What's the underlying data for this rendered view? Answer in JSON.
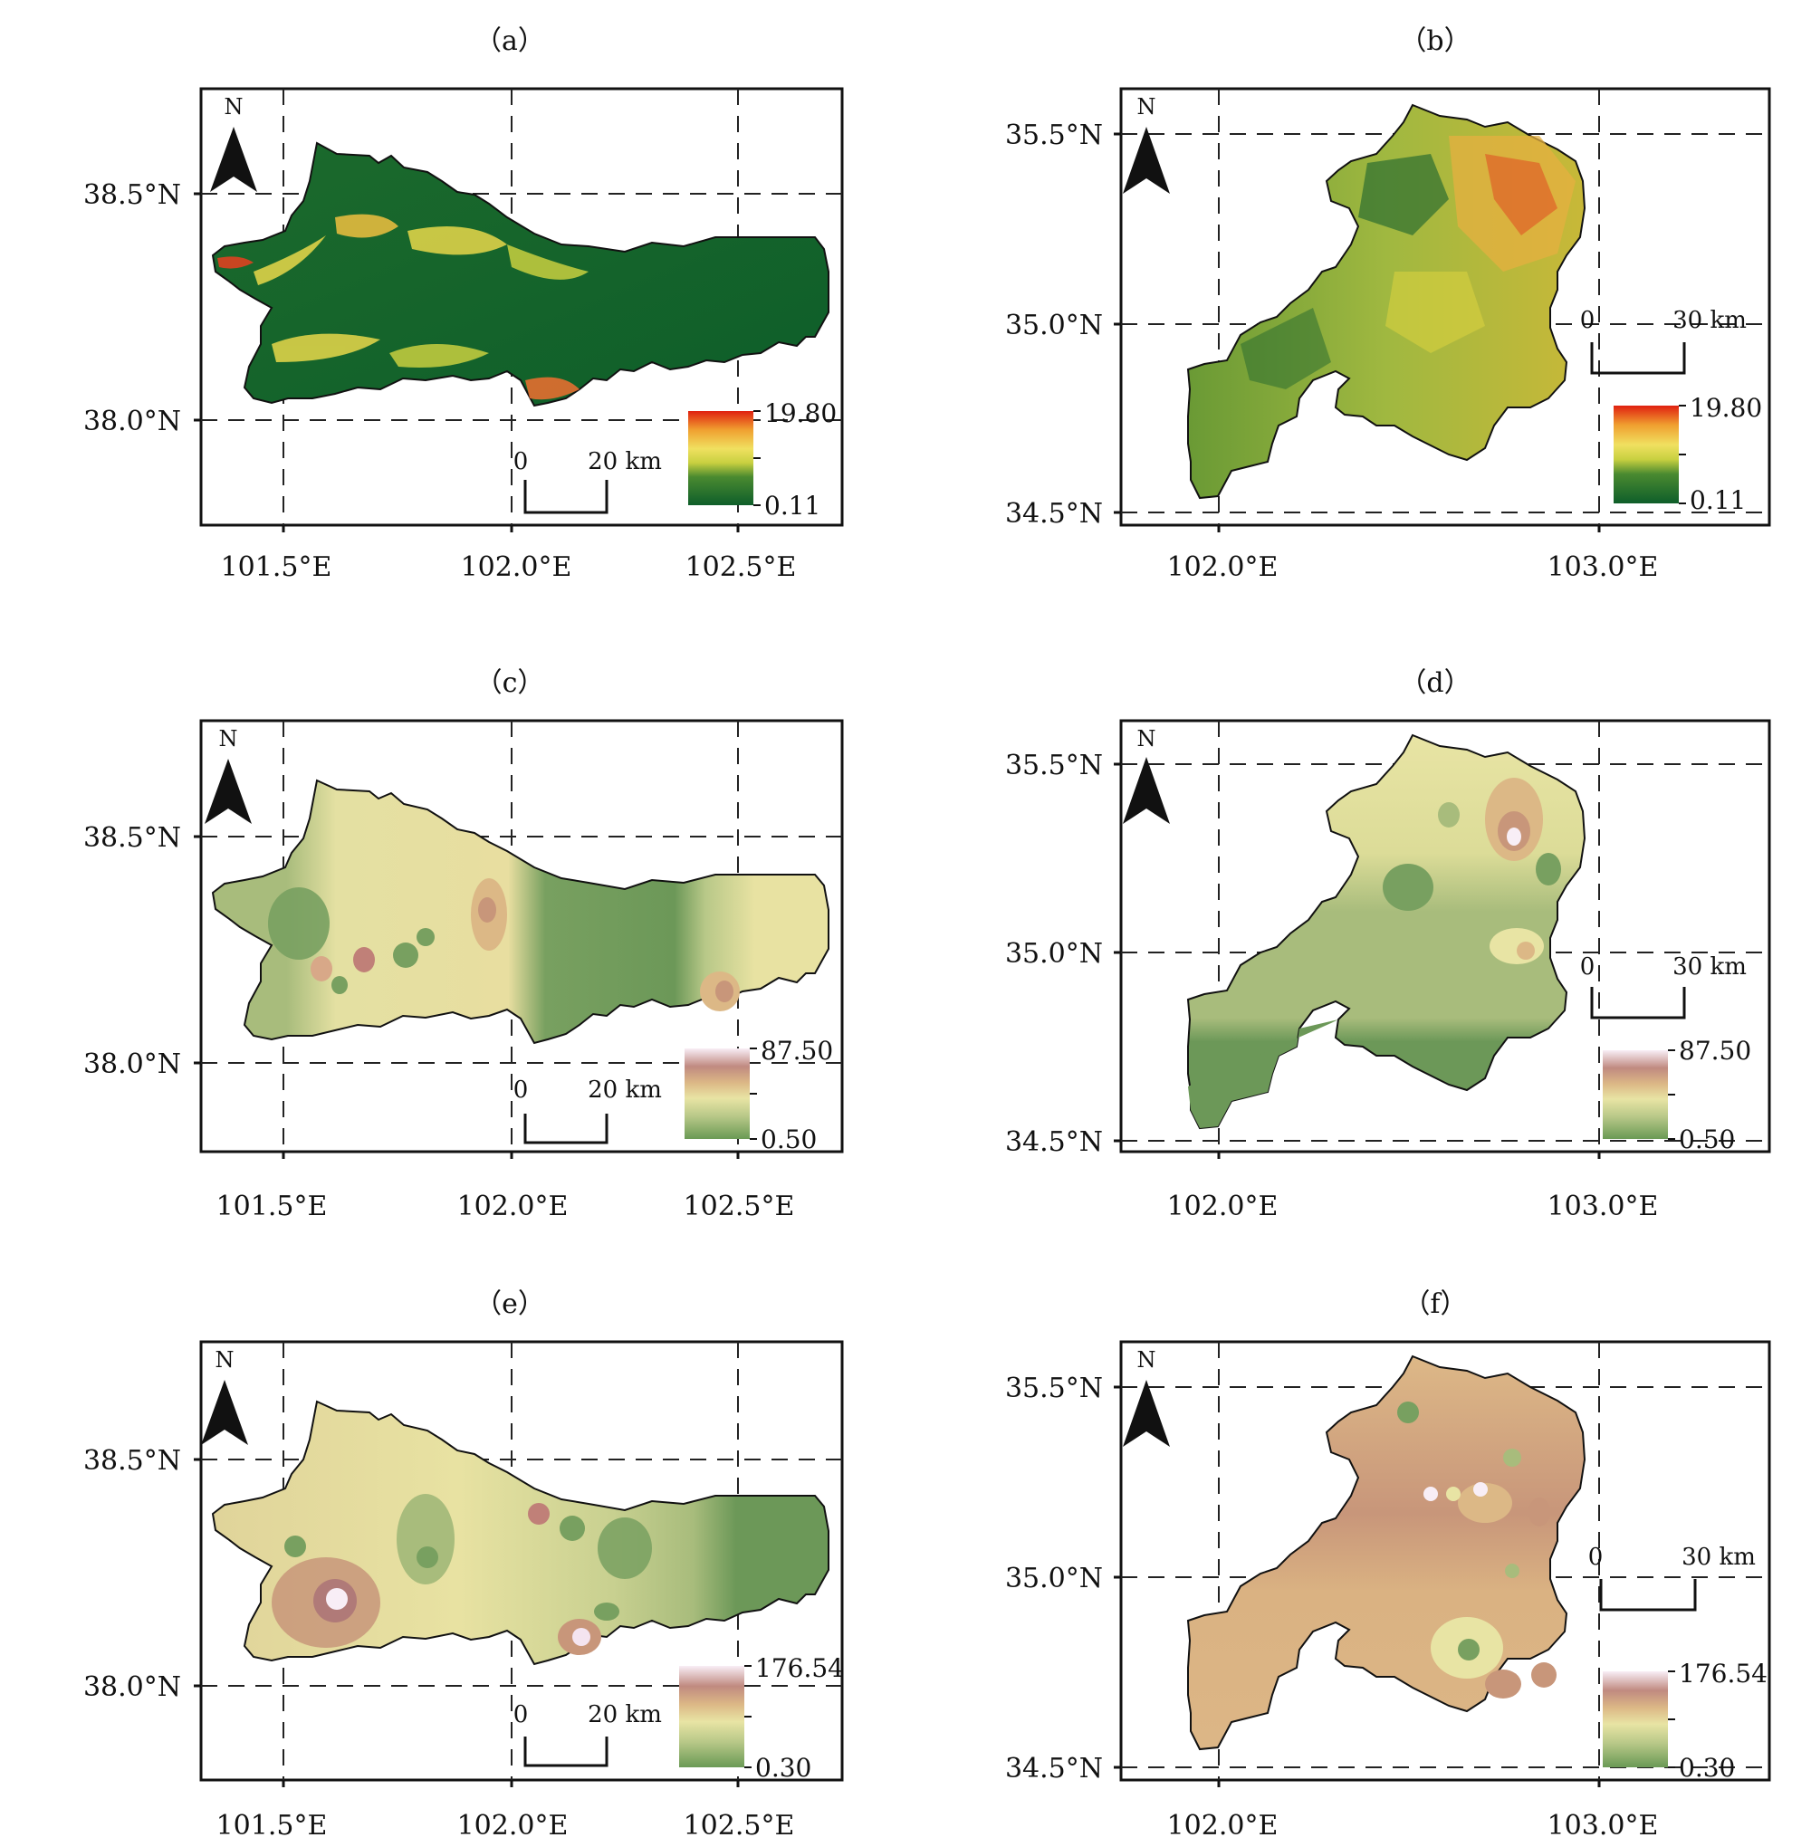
{
  "panels": [
    {
      "id": "a",
      "title": "（a）",
      "region": "west",
      "lat_ticks": [
        "38.5°N",
        "38.0°N"
      ],
      "lon_ticks": [
        "101.5°E",
        "102.0°E",
        "102.5°E"
      ],
      "scale": {
        "zero": "0",
        "dist": "20 km"
      },
      "legend": {
        "max": "19.80",
        "min": "0.11",
        "palette": "slope"
      },
      "north": "N"
    },
    {
      "id": "b",
      "title": "（b）",
      "region": "east",
      "lat_ticks": [
        "35.5°N",
        "35.0°N",
        "34.5°N"
      ],
      "lon_ticks": [
        "102.0°E",
        "103.0°E"
      ],
      "scale": {
        "zero": "0",
        "dist": "30 km"
      },
      "legend": {
        "max": "19.80",
        "min": "0.11",
        "palette": "slope"
      },
      "north": "N"
    },
    {
      "id": "c",
      "title": "（c）",
      "region": "west",
      "lat_ticks": [
        "38.5°N",
        "38.0°N"
      ],
      "lon_ticks": [
        "101.5°E",
        "102.0°E",
        "102.5°E"
      ],
      "scale": {
        "zero": "0",
        "dist": "20 km"
      },
      "legend": {
        "max": "87.50",
        "min": "0.50",
        "palette": "earth"
      },
      "north": "N"
    },
    {
      "id": "d",
      "title": "（d）",
      "region": "east",
      "lat_ticks": [
        "35.5°N",
        "35.0°N",
        "34.5°N"
      ],
      "lon_ticks": [
        "102.0°E",
        "103.0°E"
      ],
      "scale": {
        "zero": "0",
        "dist": "30 km"
      },
      "legend": {
        "max": "87.50",
        "min": "0.50",
        "palette": "earth"
      },
      "north": "N"
    },
    {
      "id": "e",
      "title": "（e）",
      "region": "west",
      "lat_ticks": [
        "38.5°N",
        "38.0°N"
      ],
      "lon_ticks": [
        "101.5°E",
        "102.0°E",
        "102.5°E"
      ],
      "scale": {
        "zero": "0",
        "dist": "20 km"
      },
      "legend": {
        "max": "176.54",
        "min": "0.30",
        "palette": "earth"
      },
      "north": "N"
    },
    {
      "id": "f",
      "title": "（f）",
      "region": "east",
      "lat_ticks": [
        "35.5°N",
        "35.0°N",
        "34.5°N"
      ],
      "lon_ticks": [
        "102.0°E",
        "103.0°E"
      ],
      "scale": {
        "zero": "0",
        "dist": "30 km"
      },
      "legend": {
        "max": "176.54",
        "min": "0.30",
        "palette": "earth"
      },
      "north": "N"
    }
  ],
  "colors": {
    "slope_low": "#0e5e2a",
    "slope_mid": "#e8e040",
    "slope_high": "#e02010",
    "earth_low": "#6a9a55",
    "earth_mid": "#e8e2a0",
    "earth_tan": "#d8b07a",
    "earth_high": "#f4e4f0"
  }
}
